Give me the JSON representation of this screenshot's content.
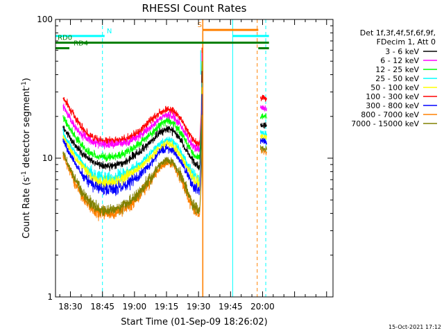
{
  "chart_data": {
    "type": "line",
    "title": "RHESSI Count Rates",
    "xlabel": "Start Time (01-Sep-09 18:26:02)",
    "ylabel_main": "Count Rate (s",
    "ylabel_sup1": "-1",
    "ylabel_mid": " detector segment",
    "ylabel_sup2": "-1",
    "ylabel_end": ")",
    "timestamp": "15-Oct-2021 17:12",
    "y_scale": "log",
    "ylim": [
      1,
      100
    ],
    "xlim_min": [
      -3,
      127
    ],
    "y_ticks": [
      {
        "value": 1,
        "label": "1"
      },
      {
        "value": 10,
        "label": "10"
      },
      {
        "value": 100,
        "label": "100"
      }
    ],
    "x_ticks": [
      {
        "value": 4,
        "label": "18:30"
      },
      {
        "value": 19,
        "label": "18:45"
      },
      {
        "value": 34,
        "label": "19:00"
      },
      {
        "value": 49,
        "label": "19:15"
      },
      {
        "value": 64,
        "label": "19:30"
      },
      {
        "value": 79,
        "label": "19:45"
      },
      {
        "value": 94,
        "label": "20:00"
      }
    ],
    "legend": {
      "placement": "right",
      "header": [
        "Det 1f,3f,4f,5f,6f,9f,",
        "FDecim 1, Att 0"
      ],
      "entries": [
        {
          "label": "3 - 6 keV",
          "color": "#000000"
        },
        {
          "label": "6 - 12 keV",
          "color": "#ff00ff"
        },
        {
          "label": "12 - 25 keV",
          "color": "#00ff00"
        },
        {
          "label": "25 - 50 keV",
          "color": "#00ffff"
        },
        {
          "label": "50 - 100 keV",
          "color": "#ffff00"
        },
        {
          "label": "100 - 300 keV",
          "color": "#ff0000"
        },
        {
          "label": "300 - 800 keV",
          "color": "#0000ff"
        },
        {
          "label": "800 - 7000 keV",
          "color": "#ff8000"
        },
        {
          "label": "7000 - 15000 keV",
          "color": "#808000"
        }
      ]
    },
    "series": [
      {
        "color": "#ff0000",
        "values": [
          [
            0.5,
            27.5
          ],
          [
            3,
            24
          ],
          [
            6,
            20
          ],
          [
            9,
            17
          ],
          [
            12,
            15
          ],
          [
            15,
            14
          ],
          [
            19,
            13.3
          ],
          [
            24,
            13.3
          ],
          [
            30,
            13.8
          ],
          [
            36,
            15.5
          ],
          [
            42,
            19
          ],
          [
            46,
            21.5
          ],
          [
            49,
            22.5
          ],
          [
            52,
            22
          ],
          [
            56,
            19
          ],
          [
            59,
            15.5
          ],
          [
            62,
            13.3
          ],
          [
            64.5,
            12.5
          ]
        ],
        "values_late": [
          [
            93,
            27.5
          ],
          [
            96,
            27
          ]
        ]
      },
      {
        "color": "#ff00ff",
        "values": [
          [
            0.5,
            24
          ],
          [
            3,
            20
          ],
          [
            6,
            17
          ],
          [
            9,
            15
          ],
          [
            12,
            13.8
          ],
          [
            15,
            13
          ],
          [
            19,
            12.5
          ],
          [
            24,
            12.5
          ],
          [
            30,
            13
          ],
          [
            36,
            14.3
          ],
          [
            42,
            17
          ],
          [
            46,
            19.5
          ],
          [
            49,
            20.5
          ],
          [
            52,
            20
          ],
          [
            56,
            17
          ],
          [
            59,
            14
          ],
          [
            62,
            12
          ],
          [
            64.5,
            11.5
          ]
        ],
        "values_late": [
          [
            93,
            23
          ],
          [
            96,
            23
          ]
        ]
      },
      {
        "color": "#00ff00",
        "values": [
          [
            0.5,
            20
          ],
          [
            3,
            17
          ],
          [
            6,
            14.5
          ],
          [
            9,
            12.5
          ],
          [
            12,
            11.2
          ],
          [
            15,
            10.5
          ],
          [
            19,
            10.2
          ],
          [
            24,
            10.2
          ],
          [
            30,
            11
          ],
          [
            36,
            12.5
          ],
          [
            42,
            15
          ],
          [
            46,
            17.5
          ],
          [
            49,
            18.5
          ],
          [
            52,
            18
          ],
          [
            56,
            15
          ],
          [
            59,
            12.5
          ],
          [
            62,
            10.5
          ],
          [
            64.5,
            10
          ]
        ],
        "values_late": [
          [
            93,
            20
          ],
          [
            96,
            20
          ]
        ]
      },
      {
        "color": "#000000",
        "values": [
          [
            0.5,
            17
          ],
          [
            3,
            14.5
          ],
          [
            6,
            12.5
          ],
          [
            9,
            11
          ],
          [
            12,
            10
          ],
          [
            15,
            9.3
          ],
          [
            19,
            8.8
          ],
          [
            24,
            8.8
          ],
          [
            30,
            9.5
          ],
          [
            36,
            11
          ],
          [
            42,
            13.3
          ],
          [
            46,
            15.5
          ],
          [
            49,
            16.2
          ],
          [
            52,
            16
          ],
          [
            56,
            13.3
          ],
          [
            59,
            11
          ],
          [
            62,
            9.2
          ],
          [
            64.5,
            8.5
          ]
        ],
        "values_late": [
          [
            93,
            17.5
          ],
          [
            96,
            17
          ]
        ]
      },
      {
        "color": "#00ffff",
        "values": [
          [
            0.5,
            15.5
          ],
          [
            3,
            13
          ],
          [
            6,
            11
          ],
          [
            9,
            9.5
          ],
          [
            12,
            8.3
          ],
          [
            15,
            7.6
          ],
          [
            19,
            7.2
          ],
          [
            24,
            7.2
          ],
          [
            30,
            7.8
          ],
          [
            36,
            9
          ],
          [
            42,
            11
          ],
          [
            46,
            12.8
          ],
          [
            49,
            13.5
          ],
          [
            52,
            13.2
          ],
          [
            56,
            11
          ],
          [
            59,
            9
          ],
          [
            62,
            7.5
          ],
          [
            64.5,
            7
          ]
        ],
        "values_late": [
          [
            93,
            15.5
          ],
          [
            96,
            15
          ]
        ]
      },
      {
        "color": "#ffff00",
        "values": [
          [
            0.5,
            14.5
          ],
          [
            3,
            12.2
          ],
          [
            6,
            10.3
          ],
          [
            9,
            8.9
          ],
          [
            12,
            7.8
          ],
          [
            15,
            7.1
          ],
          [
            19,
            6.7
          ],
          [
            24,
            6.7
          ],
          [
            30,
            7.3
          ],
          [
            36,
            8.4
          ],
          [
            42,
            10.3
          ],
          [
            46,
            12
          ],
          [
            49,
            12.6
          ],
          [
            52,
            12.3
          ],
          [
            56,
            10.3
          ],
          [
            59,
            8.4
          ],
          [
            62,
            7
          ],
          [
            64.5,
            6.5
          ]
        ],
        "values_late": [
          [
            93,
            14.5
          ],
          [
            96,
            14
          ]
        ]
      },
      {
        "color": "#0000ff",
        "values": [
          [
            0.5,
            13.5
          ],
          [
            3,
            11.2
          ],
          [
            6,
            9.3
          ],
          [
            9,
            7.9
          ],
          [
            12,
            6.9
          ],
          [
            15,
            6.3
          ],
          [
            19,
            5.9
          ],
          [
            24,
            5.9
          ],
          [
            30,
            6.4
          ],
          [
            36,
            7.5
          ],
          [
            42,
            9.3
          ],
          [
            46,
            11
          ],
          [
            49,
            11.8
          ],
          [
            52,
            11.4
          ],
          [
            56,
            9.3
          ],
          [
            59,
            7.5
          ],
          [
            62,
            6.1
          ],
          [
            64.5,
            5.8
          ]
        ],
        "values_late": [
          [
            93,
            13.5
          ],
          [
            96,
            13
          ]
        ]
      },
      {
        "color": "#ff8000",
        "values": [
          [
            0.5,
            10.5
          ],
          [
            3,
            8.5
          ],
          [
            6,
            6.8
          ],
          [
            9,
            5.5
          ],
          [
            12,
            4.7
          ],
          [
            15,
            4.2
          ],
          [
            19,
            4
          ],
          [
            24,
            4
          ],
          [
            30,
            4.4
          ],
          [
            36,
            5.3
          ],
          [
            42,
            7
          ],
          [
            46,
            8.6
          ],
          [
            49,
            9.3
          ],
          [
            52,
            9
          ],
          [
            56,
            7
          ],
          [
            59,
            5.3
          ],
          [
            62,
            4.2
          ],
          [
            64.5,
            3.9
          ]
        ],
        "values_late": [
          [
            93,
            11.5
          ],
          [
            96,
            11
          ]
        ]
      },
      {
        "color": "#808000",
        "values": [
          [
            0.5,
            11
          ],
          [
            3,
            9
          ],
          [
            6,
            7.2
          ],
          [
            9,
            5.9
          ],
          [
            12,
            5
          ],
          [
            15,
            4.5
          ],
          [
            19,
            4.2
          ],
          [
            24,
            4.2
          ],
          [
            30,
            4.6
          ],
          [
            36,
            5.6
          ],
          [
            42,
            7.4
          ],
          [
            46,
            9
          ],
          [
            49,
            9.7
          ],
          [
            52,
            9.4
          ],
          [
            56,
            7.4
          ],
          [
            59,
            5.6
          ],
          [
            62,
            4.4
          ],
          [
            64.5,
            4.1
          ]
        ],
        "values_late": [
          [
            93,
            12
          ],
          [
            96,
            11.5
          ]
        ]
      }
    ],
    "markers": [
      {
        "id": "N",
        "label": "N",
        "color": "#00ffff",
        "y": 76,
        "x0": -3,
        "x1": 20,
        "label_x": 21
      },
      {
        "id": "RD0",
        "label": "RD0",
        "color": "#008000",
        "y": 68,
        "x0": -3,
        "x1": 97,
        "label_x": -2
      },
      {
        "id": "RD4",
        "label": "RD4",
        "color": "#008000",
        "y": 62,
        "x0": -3,
        "x1": 3.5,
        "label_x": 5.5
      },
      {
        "id": "S",
        "label": "S",
        "color": "#ff8000",
        "y": 84,
        "x0": 66,
        "x1": 92,
        "label_x": 63.5
      }
    ],
    "marker_segments_extra": [
      {
        "color": "#00ffff",
        "y": 76,
        "x0": 80,
        "x1": 97
      },
      {
        "color": "#008000",
        "y": 62,
        "x0": 92,
        "x1": 97
      }
    ],
    "vlines": [
      {
        "x": 19,
        "color": "#00ffff",
        "style": "dashed"
      },
      {
        "x": 66,
        "color": "#ff8000",
        "style": "solid"
      },
      {
        "x": 80,
        "color": "#00ffff",
        "style": "solid"
      },
      {
        "x": 91.5,
        "color": "#ff8000",
        "style": "dashed"
      },
      {
        "x": 95.5,
        "color": "#00ffff",
        "style": "dashed"
      },
      {
        "x": 65,
        "color": "#00ffff",
        "style": "solid_short"
      }
    ]
  }
}
